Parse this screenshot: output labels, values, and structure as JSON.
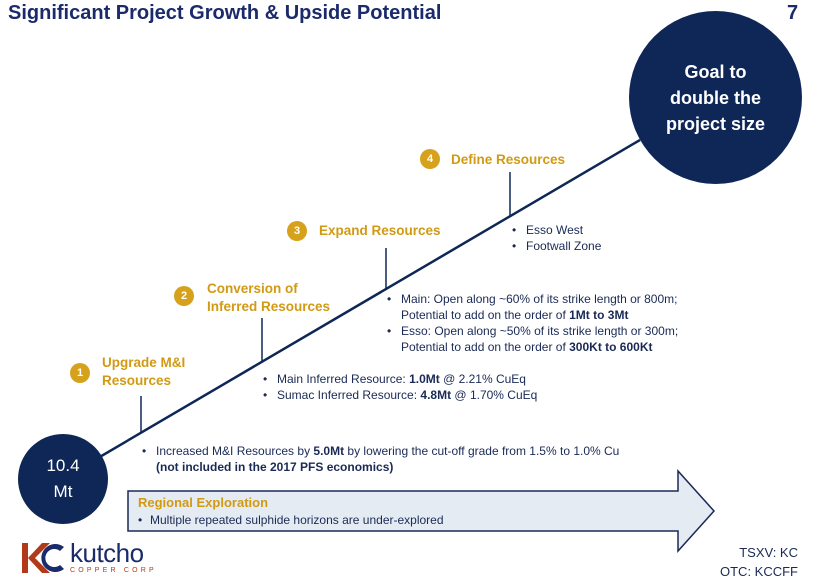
{
  "header": {
    "title": "Significant Project Growth & Upside Potential",
    "page_number": "7"
  },
  "goal": {
    "text": "Goal to double the project size"
  },
  "start": {
    "value": "10.4",
    "unit": "Mt"
  },
  "steps": [
    {
      "number": "1",
      "label_line1": "Upgrade M&I",
      "label_line2": "Resources",
      "bullets": [
        {
          "pre": "Increased M&I Resources by ",
          "bold": "5.0Mt",
          "post": " by lowering the cut-off grade from 1.5% to 1.0% Cu"
        },
        {
          "bold_line": "(not included in the 2017 PFS economics)"
        }
      ]
    },
    {
      "number": "2",
      "label_line1": "Conversion of",
      "label_line2": "Inferred Resources",
      "bullets": [
        {
          "pre": "Main Inferred Resource: ",
          "bold": "1.0Mt",
          "post": " @ 2.21% CuEq"
        },
        {
          "pre": "Sumac Inferred Resource: ",
          "bold": "4.8Mt",
          "post": " @ 1.70% CuEq"
        }
      ]
    },
    {
      "number": "3",
      "label": "Expand Resources",
      "bullets": [
        {
          "line1": "Main: Open along ~60% of its strike length or 800m;",
          "pre": "Potential to add on the order of ",
          "bold": "1Mt to 3Mt"
        },
        {
          "line1": "Esso: Open along ~50% of its strike length or 300m;",
          "pre": "Potential to add on the order of ",
          "bold": "300Kt to 600Kt"
        }
      ]
    },
    {
      "number": "4",
      "label": "Define Resources",
      "bullets": [
        "Esso West",
        "Footwall Zone"
      ]
    }
  ],
  "regional": {
    "title": "Regional Exploration",
    "bullet": "Multiple repeated sulphide horizons are under-explored"
  },
  "logo": {
    "word": "kutcho",
    "sub": "COPPER CORP",
    "mark": "KC"
  },
  "tickers": [
    "TSXV: KC",
    "OTC: KCCFF"
  ],
  "colors": {
    "navy": "#0f2757",
    "gold": "#d7a21b",
    "arrow_fill": "#e5ebf2",
    "arrow_stroke": "#1a2a55"
  },
  "bullet_char": "•"
}
